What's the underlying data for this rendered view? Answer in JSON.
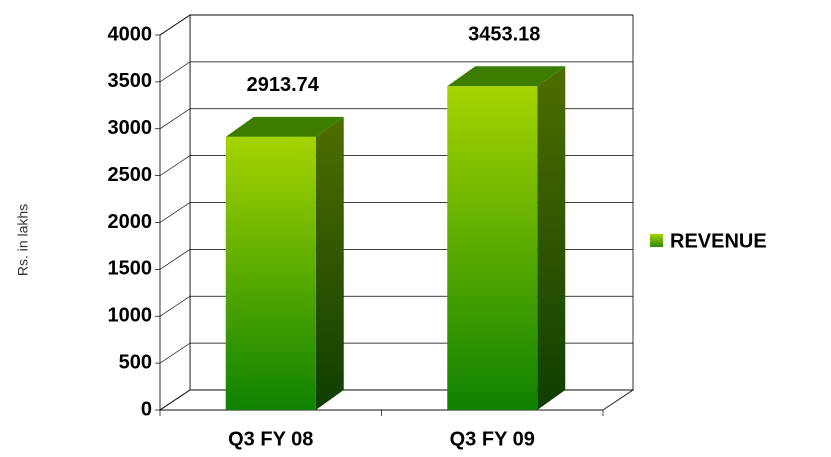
{
  "chart_data": {
    "type": "bar",
    "y_label": "Rs. in lakhs",
    "categories": [
      "Q3 FY 08",
      "Q3 FY 09"
    ],
    "series": [
      {
        "name": "REVENUE",
        "color": "#8cc000",
        "values": [
          2913.74,
          3453.18
        ]
      }
    ],
    "ylim": [
      0,
      4000
    ],
    "yticks": [
      0,
      500,
      1000,
      1500,
      2000,
      2500,
      3000,
      3500,
      4000
    ],
    "grid": true,
    "legend": "right"
  }
}
